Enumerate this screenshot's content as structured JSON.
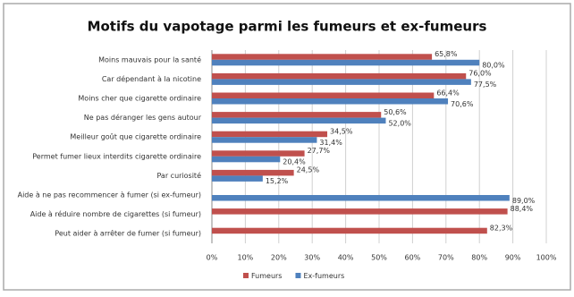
{
  "chart_data": {
    "type": "hbar",
    "title": "Motifs du vapotage parmi les fumeurs et ex-fumeurs",
    "categories": [
      "Moins mauvais pour la santé",
      "Car dépendant à la nicotine",
      "Moins cher que cigarette ordinaire",
      "Ne pas déranger les gens autour",
      "Meilleur goût que cigarette ordinaire",
      "Permet fumer lieux interdits cigarette ordinaire",
      "Par curiosité",
      "Aide à ne pas recommencer à fumer (si ex-fumeur)",
      "Aide à réduire nombre de cigarettes (si fumeur)",
      "Peut aider à arrêter de fumer (si fumeur)"
    ],
    "series": [
      {
        "name": "Fumeurs",
        "color": "#c0504d",
        "values": [
          65.8,
          76.0,
          66.4,
          50.6,
          34.5,
          27.7,
          24.5,
          null,
          88.4,
          82.3
        ],
        "value_labels": [
          "65,8%",
          "76,0%",
          "66,4%",
          "50,6%",
          "34,5%",
          "27,7%",
          "24,5%",
          null,
          "88,4%",
          "82,3%"
        ]
      },
      {
        "name": "Ex-fumeurs",
        "color": "#4f81bd",
        "values": [
          80.0,
          77.5,
          70.6,
          52.0,
          31.4,
          20.4,
          15.2,
          89.0,
          null,
          null
        ],
        "value_labels": [
          "80,0%",
          "77,5%",
          "70,6%",
          "52,0%",
          "31,4%",
          "20,4%",
          "15,2%",
          "89,0%",
          null,
          null
        ]
      }
    ],
    "xlim": [
      0,
      100
    ],
    "xticks": [
      {
        "value": 0,
        "label": "0%"
      },
      {
        "value": 10,
        "label": "10%"
      },
      {
        "value": 20,
        "label": "20%"
      },
      {
        "value": 30,
        "label": "30%"
      },
      {
        "value": 40,
        "label": "40%"
      },
      {
        "value": 50,
        "label": "50%"
      },
      {
        "value": 60,
        "label": "60%"
      },
      {
        "value": 70,
        "label": "70%"
      },
      {
        "value": 80,
        "label": "80%"
      },
      {
        "value": 90,
        "label": "90%"
      },
      {
        "value": 100,
        "label": "100%"
      }
    ],
    "grid": true
  }
}
